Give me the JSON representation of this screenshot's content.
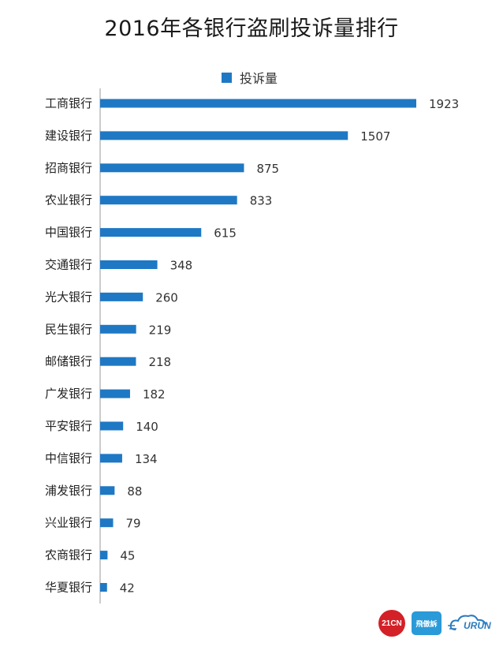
{
  "chart_data": {
    "type": "bar",
    "orientation": "horizontal",
    "title": "2016年各银行盗刷投诉量排行",
    "categories": [
      "工商银行",
      "建设银行",
      "招商银行",
      "农业银行",
      "中国银行",
      "交通银行",
      "光大银行",
      "民生银行",
      "邮储银行",
      "广发银行",
      "平安银行",
      "中信银行",
      "浦发银行",
      "兴业银行",
      "农商银行",
      "华夏银行"
    ],
    "series": [
      {
        "name": "投诉量",
        "values": [
          1923,
          1507,
          875,
          833,
          615,
          348,
          260,
          219,
          218,
          182,
          140,
          134,
          88,
          79,
          45,
          42
        ]
      }
    ],
    "xlim": [
      0,
      1923
    ],
    "grid": false,
    "legend_position": "top-center",
    "bar_color": "#1f78c4"
  },
  "logos": {
    "logo_21cn": "21CN",
    "logo_fly": "飛傲訴",
    "logo_urun": "URUN"
  }
}
